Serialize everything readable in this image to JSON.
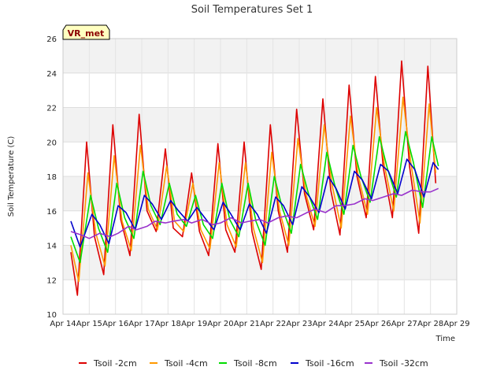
{
  "chart_data": {
    "type": "line",
    "title": "Soil Temperatures Set 1",
    "xlabel": "Time",
    "ylabel": "Soil Temperature (C)",
    "badge": "VR_met",
    "xlim": [
      14,
      29
    ],
    "ylim": [
      10,
      26
    ],
    "x_ticks": [
      {
        "value": 14,
        "label": "Apr 14"
      },
      {
        "value": 15,
        "label": "Apr 15"
      },
      {
        "value": 16,
        "label": "Apr 16"
      },
      {
        "value": 17,
        "label": "Apr 17"
      },
      {
        "value": 18,
        "label": "Apr 18"
      },
      {
        "value": 19,
        "label": "Apr 19"
      },
      {
        "value": 20,
        "label": "Apr 20"
      },
      {
        "value": 21,
        "label": "Apr 21"
      },
      {
        "value": 22,
        "label": "Apr 22"
      },
      {
        "value": 23,
        "label": "Apr 23"
      },
      {
        "value": 24,
        "label": "Apr 24"
      },
      {
        "value": 25,
        "label": "Apr 25"
      },
      {
        "value": 26,
        "label": "Apr 26"
      },
      {
        "value": 27,
        "label": "Apr 27"
      },
      {
        "value": 28,
        "label": "Apr 28"
      },
      {
        "value": 29,
        "label": "Apr 29"
      }
    ],
    "y_ticks": [
      {
        "value": 10,
        "label": "10"
      },
      {
        "value": 12,
        "label": "12"
      },
      {
        "value": 14,
        "label": "14"
      },
      {
        "value": 16,
        "label": "16"
      },
      {
        "value": 18,
        "label": "18"
      },
      {
        "value": 20,
        "label": "20"
      },
      {
        "value": 22,
        "label": "22"
      },
      {
        "value": 24,
        "label": "24"
      },
      {
        "value": 26,
        "label": "26"
      }
    ],
    "grid": true,
    "legend_position": "bottom",
    "series": [
      {
        "name": "Tsoil -2cm",
        "color": "#dd0000",
        "points": [
          [
            14.3,
            13.6
          ],
          [
            14.55,
            11.1
          ],
          [
            14.9,
            20.0
          ],
          [
            15.2,
            14.5
          ],
          [
            15.55,
            12.3
          ],
          [
            15.9,
            21.0
          ],
          [
            16.2,
            15.5
          ],
          [
            16.55,
            13.4
          ],
          [
            16.9,
            21.6
          ],
          [
            17.2,
            16.0
          ],
          [
            17.55,
            14.8
          ],
          [
            17.9,
            19.6
          ],
          [
            18.2,
            15.0
          ],
          [
            18.55,
            14.5
          ],
          [
            18.9,
            18.2
          ],
          [
            19.2,
            14.8
          ],
          [
            19.55,
            13.4
          ],
          [
            19.9,
            19.9
          ],
          [
            20.2,
            14.9
          ],
          [
            20.55,
            13.6
          ],
          [
            20.9,
            20.0
          ],
          [
            21.2,
            14.8
          ],
          [
            21.55,
            12.6
          ],
          [
            21.9,
            21.0
          ],
          [
            22.2,
            16.0
          ],
          [
            22.55,
            13.6
          ],
          [
            22.9,
            21.9
          ],
          [
            23.2,
            17.0
          ],
          [
            23.55,
            14.9
          ],
          [
            23.9,
            22.5
          ],
          [
            24.2,
            17.2
          ],
          [
            24.55,
            14.6
          ],
          [
            24.9,
            23.3
          ],
          [
            25.2,
            18.0
          ],
          [
            25.55,
            15.6
          ],
          [
            25.9,
            23.8
          ],
          [
            26.2,
            18.5
          ],
          [
            26.55,
            15.6
          ],
          [
            26.9,
            24.7
          ],
          [
            27.2,
            18.6
          ],
          [
            27.55,
            14.7
          ],
          [
            27.9,
            24.4
          ],
          [
            28.2,
            17.6
          ]
        ]
      },
      {
        "name": "Tsoil -4cm",
        "color": "#ff9900",
        "points": [
          [
            14.3,
            14.0
          ],
          [
            14.6,
            11.9
          ],
          [
            14.95,
            18.2
          ],
          [
            15.25,
            14.7
          ],
          [
            15.6,
            12.8
          ],
          [
            15.95,
            19.2
          ],
          [
            16.25,
            15.4
          ],
          [
            16.6,
            13.7
          ],
          [
            16.95,
            19.8
          ],
          [
            17.25,
            16.1
          ],
          [
            17.6,
            14.9
          ],
          [
            17.95,
            18.6
          ],
          [
            18.25,
            15.4
          ],
          [
            18.6,
            14.8
          ],
          [
            18.95,
            17.6
          ],
          [
            19.25,
            14.9
          ],
          [
            19.6,
            13.8
          ],
          [
            19.95,
            18.8
          ],
          [
            20.25,
            15.2
          ],
          [
            20.6,
            13.9
          ],
          [
            20.95,
            18.8
          ],
          [
            21.25,
            15.0
          ],
          [
            21.6,
            13.0
          ],
          [
            21.95,
            19.4
          ],
          [
            22.25,
            16.0
          ],
          [
            22.6,
            14.0
          ],
          [
            22.95,
            20.2
          ],
          [
            23.25,
            17.0
          ],
          [
            23.6,
            15.1
          ],
          [
            23.95,
            21.0
          ],
          [
            24.25,
            17.5
          ],
          [
            24.6,
            15.0
          ],
          [
            24.95,
            21.5
          ],
          [
            25.25,
            18.0
          ],
          [
            25.6,
            15.8
          ],
          [
            25.95,
            22.0
          ],
          [
            26.25,
            18.6
          ],
          [
            26.6,
            16.0
          ],
          [
            26.95,
            22.6
          ],
          [
            27.25,
            18.8
          ],
          [
            27.6,
            15.3
          ],
          [
            27.95,
            22.2
          ],
          [
            28.2,
            18.2
          ]
        ]
      },
      {
        "name": "Tsoil -8cm",
        "color": "#00dd00",
        "points": [
          [
            14.3,
            14.5
          ],
          [
            14.65,
            13.0
          ],
          [
            15.05,
            16.9
          ],
          [
            15.35,
            15.0
          ],
          [
            15.7,
            13.6
          ],
          [
            16.05,
            17.6
          ],
          [
            16.35,
            15.6
          ],
          [
            16.7,
            14.4
          ],
          [
            17.05,
            18.3
          ],
          [
            17.35,
            16.3
          ],
          [
            17.7,
            15.2
          ],
          [
            18.05,
            17.6
          ],
          [
            18.35,
            15.8
          ],
          [
            18.7,
            15.1
          ],
          [
            19.05,
            16.9
          ],
          [
            19.35,
            15.2
          ],
          [
            19.7,
            14.4
          ],
          [
            20.05,
            17.6
          ],
          [
            20.35,
            15.5
          ],
          [
            20.7,
            14.5
          ],
          [
            21.05,
            17.6
          ],
          [
            21.35,
            15.4
          ],
          [
            21.7,
            14.0
          ],
          [
            22.05,
            18.0
          ],
          [
            22.35,
            16.2
          ],
          [
            22.7,
            14.7
          ],
          [
            23.05,
            18.7
          ],
          [
            23.35,
            17.0
          ],
          [
            23.7,
            15.5
          ],
          [
            24.05,
            19.4
          ],
          [
            24.35,
            17.5
          ],
          [
            24.7,
            15.8
          ],
          [
            25.05,
            19.8
          ],
          [
            25.35,
            18.0
          ],
          [
            25.7,
            16.5
          ],
          [
            26.05,
            20.3
          ],
          [
            26.35,
            18.5
          ],
          [
            26.7,
            16.8
          ],
          [
            27.05,
            20.6
          ],
          [
            27.35,
            18.8
          ],
          [
            27.7,
            16.2
          ],
          [
            28.05,
            20.3
          ],
          [
            28.3,
            18.6
          ]
        ]
      },
      {
        "name": "Tsoil -16cm",
        "color": "#0000cc",
        "points": [
          [
            14.3,
            15.4
          ],
          [
            14.65,
            13.9
          ],
          [
            15.1,
            15.8
          ],
          [
            15.4,
            15.2
          ],
          [
            15.75,
            14.1
          ],
          [
            16.1,
            16.3
          ],
          [
            16.4,
            15.9
          ],
          [
            16.75,
            14.9
          ],
          [
            17.1,
            16.9
          ],
          [
            17.4,
            16.4
          ],
          [
            17.75,
            15.5
          ],
          [
            18.1,
            16.6
          ],
          [
            18.4,
            16.0
          ],
          [
            18.75,
            15.4
          ],
          [
            19.1,
            16.2
          ],
          [
            19.4,
            15.6
          ],
          [
            19.75,
            14.9
          ],
          [
            20.1,
            16.5
          ],
          [
            20.4,
            15.8
          ],
          [
            20.75,
            14.9
          ],
          [
            21.1,
            16.4
          ],
          [
            21.4,
            15.8
          ],
          [
            21.75,
            14.7
          ],
          [
            22.1,
            16.8
          ],
          [
            22.4,
            16.3
          ],
          [
            22.75,
            15.2
          ],
          [
            23.1,
            17.4
          ],
          [
            23.4,
            16.8
          ],
          [
            23.75,
            15.9
          ],
          [
            24.1,
            18.0
          ],
          [
            24.4,
            17.3
          ],
          [
            24.75,
            16.1
          ],
          [
            25.1,
            18.3
          ],
          [
            25.4,
            17.8
          ],
          [
            25.75,
            16.7
          ],
          [
            26.1,
            18.7
          ],
          [
            26.4,
            18.3
          ],
          [
            26.75,
            17.0
          ],
          [
            27.1,
            19.0
          ],
          [
            27.4,
            18.4
          ],
          [
            27.75,
            16.8
          ],
          [
            28.1,
            18.8
          ],
          [
            28.3,
            18.4
          ]
        ]
      },
      {
        "name": "Tsoil -32cm",
        "color": "#9933cc",
        "points": [
          [
            14.3,
            14.8
          ],
          [
            14.7,
            14.6
          ],
          [
            15.0,
            14.4
          ],
          [
            15.4,
            14.7
          ],
          [
            15.8,
            14.5
          ],
          [
            16.1,
            14.7
          ],
          [
            16.5,
            15.1
          ],
          [
            16.8,
            14.9
          ],
          [
            17.2,
            15.1
          ],
          [
            17.5,
            15.4
          ],
          [
            17.9,
            15.3
          ],
          [
            18.2,
            15.4
          ],
          [
            18.6,
            15.5
          ],
          [
            18.9,
            15.3
          ],
          [
            19.3,
            15.5
          ],
          [
            19.7,
            15.2
          ],
          [
            20.0,
            15.3
          ],
          [
            20.4,
            15.6
          ],
          [
            20.8,
            15.3
          ],
          [
            21.1,
            15.4
          ],
          [
            21.5,
            15.5
          ],
          [
            21.8,
            15.3
          ],
          [
            22.2,
            15.6
          ],
          [
            22.5,
            15.7
          ],
          [
            22.9,
            15.6
          ],
          [
            23.3,
            15.9
          ],
          [
            23.6,
            16.1
          ],
          [
            24.0,
            15.9
          ],
          [
            24.4,
            16.3
          ],
          [
            24.7,
            16.3
          ],
          [
            25.1,
            16.4
          ],
          [
            25.5,
            16.7
          ],
          [
            25.8,
            16.6
          ],
          [
            26.2,
            16.8
          ],
          [
            26.6,
            17.0
          ],
          [
            26.9,
            16.9
          ],
          [
            27.3,
            17.2
          ],
          [
            27.7,
            17.1
          ],
          [
            28.0,
            17.1
          ],
          [
            28.3,
            17.3
          ]
        ]
      }
    ]
  }
}
